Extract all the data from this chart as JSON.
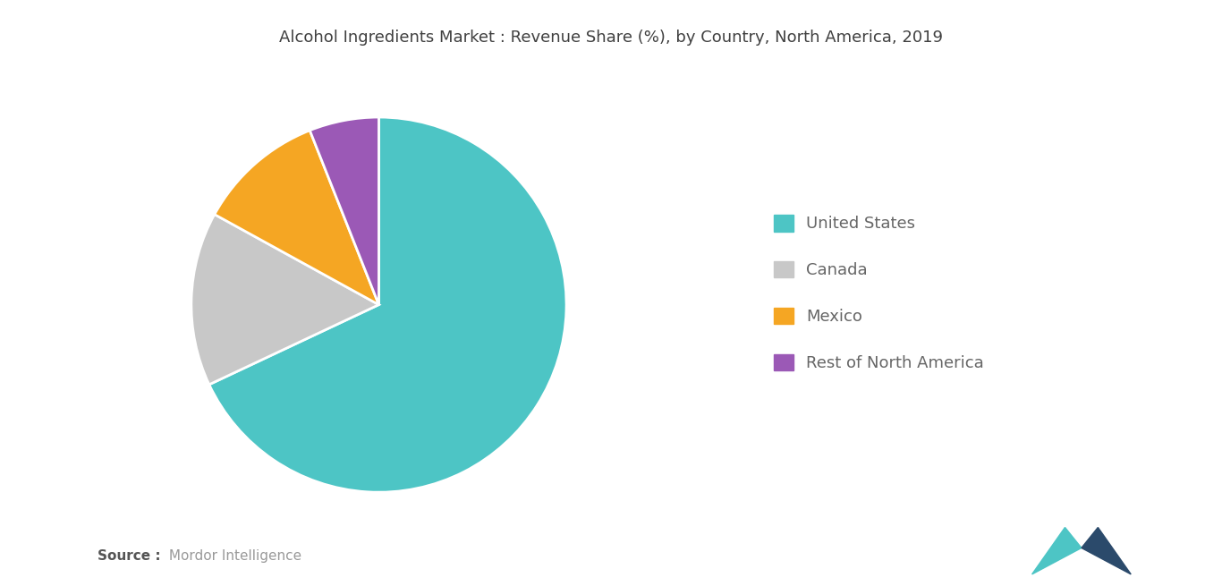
{
  "title": "Alcohol Ingredients Market : Revenue Share (%), by Country, North America, 2019",
  "labels": [
    "United States",
    "Canada",
    "Mexico",
    "Rest of North America"
  ],
  "values": [
    68,
    15,
    11,
    6
  ],
  "colors": [
    "#4DC5C5",
    "#C8C8C8",
    "#F5A623",
    "#9B59B6"
  ],
  "startangle": 90,
  "background_color": "#ffffff",
  "title_fontsize": 13,
  "legend_fontsize": 13,
  "source_bold": "Source :",
  "source_normal": " Mordor Intelligence"
}
